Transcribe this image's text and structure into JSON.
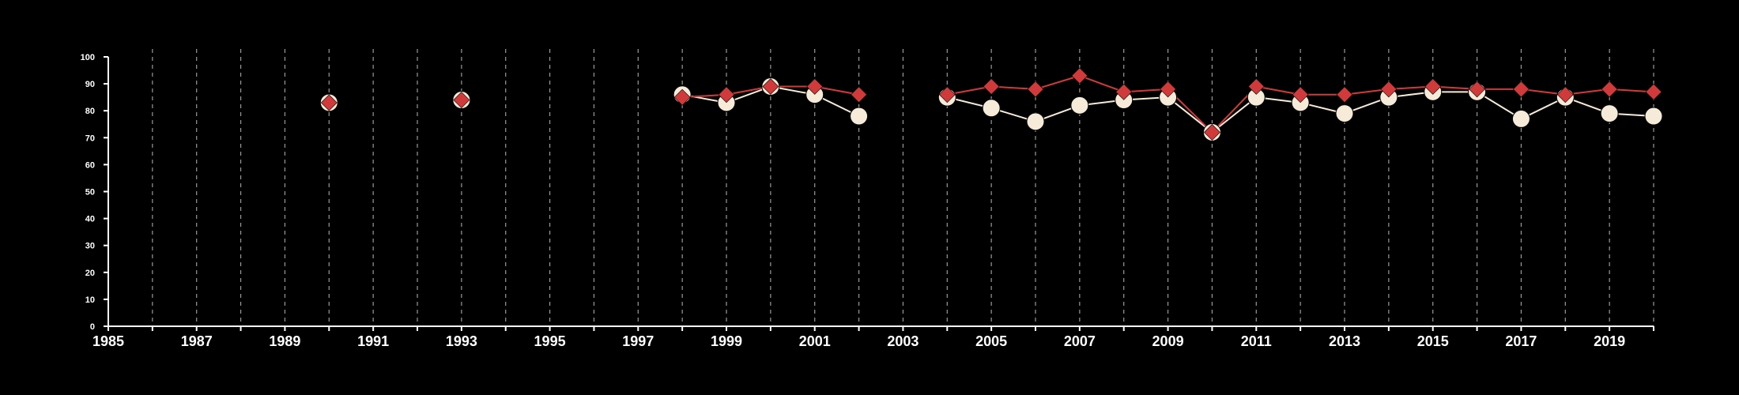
{
  "chart_data": {
    "type": "line",
    "title": "",
    "xlabel": "",
    "ylabel": "",
    "xlim": [
      1985,
      2020
    ],
    "ylim": [
      0,
      100
    ],
    "x_ticks": [
      1985,
      1987,
      1989,
      1991,
      1993,
      1995,
      1997,
      1999,
      2001,
      2003,
      2005,
      2007,
      2009,
      2011,
      2013,
      2015,
      2017,
      2019
    ],
    "y_ticks": [
      0,
      10,
      20,
      30,
      40,
      50,
      60,
      70,
      80,
      90,
      100
    ],
    "x_grid": "dashed vertical gridline at every year",
    "y_grid": false,
    "legend": "none",
    "colors": {
      "background": "#000000",
      "axis": "#ffffff",
      "grid": "#9a9a9a",
      "series_red": "#d13a3a",
      "series_cream": "#f6ead8"
    },
    "series": [
      {
        "marker": "circle",
        "color": "#f6ead8",
        "points": [
          {
            "x": 1990,
            "y": 83
          },
          {
            "x": 1993,
            "y": 84
          },
          {
            "x": 1998,
            "y": 86
          },
          {
            "x": 1999,
            "y": 83
          },
          {
            "x": 2000,
            "y": 89
          },
          {
            "x": 2001,
            "y": 86
          },
          {
            "x": 2002,
            "y": 78
          },
          {
            "x": 2004,
            "y": 85
          },
          {
            "x": 2005,
            "y": 81
          },
          {
            "x": 2006,
            "y": 76
          },
          {
            "x": 2007,
            "y": 82
          },
          {
            "x": 2008,
            "y": 84
          },
          {
            "x": 2009,
            "y": 85
          },
          {
            "x": 2010,
            "y": 72
          },
          {
            "x": 2011,
            "y": 85
          },
          {
            "x": 2012,
            "y": 83
          },
          {
            "x": 2013,
            "y": 79
          },
          {
            "x": 2014,
            "y": 85
          },
          {
            "x": 2015,
            "y": 87
          },
          {
            "x": 2016,
            "y": 87
          },
          {
            "x": 2017,
            "y": 77
          },
          {
            "x": 2018,
            "y": 85
          },
          {
            "x": 2019,
            "y": 79
          },
          {
            "x": 2020,
            "y": 78
          }
        ]
      },
      {
        "marker": "diamond",
        "color": "#d13a3a",
        "points": [
          {
            "x": 1990,
            "y": 83
          },
          {
            "x": 1993,
            "y": 84
          },
          {
            "x": 1998,
            "y": 85
          },
          {
            "x": 1999,
            "y": 86
          },
          {
            "x": 2000,
            "y": 89
          },
          {
            "x": 2001,
            "y": 89
          },
          {
            "x": 2002,
            "y": 86
          },
          {
            "x": 2004,
            "y": 86
          },
          {
            "x": 2005,
            "y": 89
          },
          {
            "x": 2006,
            "y": 88
          },
          {
            "x": 2007,
            "y": 93
          },
          {
            "x": 2008,
            "y": 87
          },
          {
            "x": 2009,
            "y": 88
          },
          {
            "x": 2010,
            "y": 72
          },
          {
            "x": 2011,
            "y": 89
          },
          {
            "x": 2012,
            "y": 86
          },
          {
            "x": 2013,
            "y": 86
          },
          {
            "x": 2014,
            "y": 88
          },
          {
            "x": 2015,
            "y": 89
          },
          {
            "x": 2016,
            "y": 88
          },
          {
            "x": 2017,
            "y": 88
          },
          {
            "x": 2018,
            "y": 86
          },
          {
            "x": 2019,
            "y": 88
          },
          {
            "x": 2020,
            "y": 87
          }
        ]
      }
    ]
  }
}
